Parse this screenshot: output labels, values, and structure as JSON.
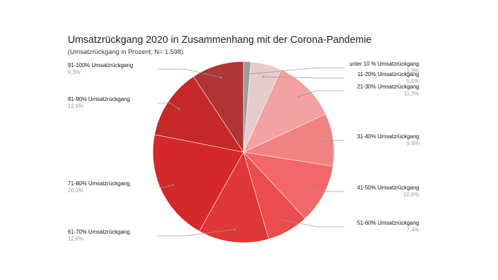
{
  "chart_data": {
    "type": "pie",
    "title": "Umsatzrückgang 2020 in Zusammenhang mit der Corona-Pandemie",
    "subtitle": "(Umsatzrückgang in Prozent; N= 1.598)",
    "slices": [
      {
        "label": "unter 10 % Umsatzrückgang",
        "value": 1.3,
        "value_label": "1,3%",
        "color": "#a09a9a"
      },
      {
        "label": "11-20% Umsatzrückgang",
        "value": 5.5,
        "value_label": "5,5%",
        "color": "#e6cccc"
      },
      {
        "label": "21-30% Umsatzrückgang",
        "value": 11.3,
        "value_label": "11,3%",
        "color": "#f3a1a1"
      },
      {
        "label": "31-40% Umsatzrückgang",
        "value": 9.4,
        "value_label": "9,4%",
        "color": "#f08282"
      },
      {
        "label": "41-50% Umsatzrückgang",
        "value": 10.6,
        "value_label": "10,6%",
        "color": "#f26868"
      },
      {
        "label": "51-60% Umsatzrückgang",
        "value": 7.4,
        "value_label": "7,4%",
        "color": "#eb4c4c"
      },
      {
        "label": "61-70% Umsatzrückgang",
        "value": 12.6,
        "value_label": "12,6%",
        "color": "#e03737"
      },
      {
        "label": "71-80% Umsatzrückgang",
        "value": 20.0,
        "value_label": "20,0%",
        "color": "#d52828"
      },
      {
        "label": "81-90% Umsatzrückgang",
        "value": 12.6,
        "value_label": "12,6%",
        "color": "#c62828"
      },
      {
        "label": "91-100% Umsatzrückgang",
        "value": 9.3,
        "value_label": "9,3%",
        "color": "#b03535"
      }
    ],
    "start_angle": "12 o'clock",
    "direction": "clockwise",
    "legend": "none",
    "label_color": "#111111",
    "value_label_color": "#9a9a9a",
    "leader_line_color": "#9a9a9a"
  }
}
